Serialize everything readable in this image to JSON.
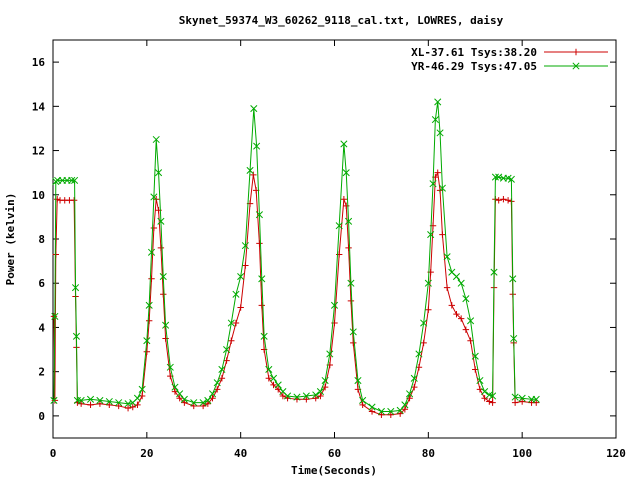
{
  "chart_data": {
    "type": "line",
    "title": "Skynet_59374_W3_60262_9118_cal.txt, LOWRES, daisy",
    "xlabel": "Time(Seconds)",
    "ylabel": "Power (kelvin)",
    "xlim": [
      0,
      120
    ],
    "ylim": [
      -1,
      17
    ],
    "xticks": [
      0,
      20,
      40,
      60,
      80,
      100,
      120
    ],
    "yticks": [
      0,
      2,
      4,
      6,
      8,
      10,
      12,
      14,
      16
    ],
    "grid": false,
    "legend_position": "top-right",
    "series": [
      {
        "name": "XL-37.61 Tsys:38.20",
        "color": "#cc0000",
        "marker": "plus",
        "points": [
          [
            0.2,
            4.5
          ],
          [
            0.4,
            0.7
          ],
          [
            0.6,
            7.3
          ],
          [
            0.9,
            9.8
          ],
          [
            1.5,
            9.75
          ],
          [
            2.5,
            9.75
          ],
          [
            3.5,
            9.75
          ],
          [
            4.5,
            9.75
          ],
          [
            4.8,
            5.4
          ],
          [
            5.0,
            3.1
          ],
          [
            5.2,
            0.6
          ],
          [
            6,
            0.55
          ],
          [
            8,
            0.5
          ],
          [
            10,
            0.55
          ],
          [
            12,
            0.5
          ],
          [
            14,
            0.45
          ],
          [
            16,
            0.35
          ],
          [
            17,
            0.4
          ],
          [
            18,
            0.5
          ],
          [
            19,
            0.9
          ],
          [
            20,
            2.9
          ],
          [
            20.5,
            4.3
          ],
          [
            21,
            6.2
          ],
          [
            21.5,
            8.5
          ],
          [
            22,
            9.8
          ],
          [
            22.5,
            9.3
          ],
          [
            23,
            7.6
          ],
          [
            23.5,
            5.5
          ],
          [
            24,
            3.5
          ],
          [
            25,
            1.8
          ],
          [
            26,
            1.1
          ],
          [
            27,
            0.8
          ],
          [
            28,
            0.6
          ],
          [
            30,
            0.45
          ],
          [
            32,
            0.45
          ],
          [
            33,
            0.55
          ],
          [
            34,
            0.8
          ],
          [
            35,
            1.2
          ],
          [
            36,
            1.7
          ],
          [
            37,
            2.5
          ],
          [
            38,
            3.4
          ],
          [
            39,
            4.2
          ],
          [
            40,
            4.9
          ],
          [
            41,
            6.8
          ],
          [
            42,
            9.6
          ],
          [
            42.7,
            10.9
          ],
          [
            43.3,
            10.2
          ],
          [
            44,
            7.8
          ],
          [
            44.5,
            5.0
          ],
          [
            45,
            3.0
          ],
          [
            46,
            1.7
          ],
          [
            47,
            1.4
          ],
          [
            48,
            1.2
          ],
          [
            49,
            0.9
          ],
          [
            50,
            0.8
          ],
          [
            52,
            0.75
          ],
          [
            54,
            0.75
          ],
          [
            56,
            0.8
          ],
          [
            57,
            0.9
          ],
          [
            58,
            1.3
          ],
          [
            59,
            2.3
          ],
          [
            60,
            4.2
          ],
          [
            61,
            7.3
          ],
          [
            62,
            9.8
          ],
          [
            62.5,
            9.5
          ],
          [
            63,
            7.6
          ],
          [
            63.5,
            5.2
          ],
          [
            64,
            3.3
          ],
          [
            65,
            1.2
          ],
          [
            66,
            0.5
          ],
          [
            68,
            0.2
          ],
          [
            70,
            0.05
          ],
          [
            72,
            0.05
          ],
          [
            74,
            0.1
          ],
          [
            75,
            0.3
          ],
          [
            76,
            0.8
          ],
          [
            77,
            1.3
          ],
          [
            78,
            2.2
          ],
          [
            79,
            3.3
          ],
          [
            80,
            4.8
          ],
          [
            80.5,
            6.5
          ],
          [
            81,
            8.6
          ],
          [
            81.5,
            10.8
          ],
          [
            82,
            11.0
          ],
          [
            82.5,
            10.2
          ],
          [
            83,
            8.2
          ],
          [
            84,
            5.8
          ],
          [
            85,
            5.0
          ],
          [
            86,
            4.6
          ],
          [
            87,
            4.4
          ],
          [
            88,
            3.9
          ],
          [
            89,
            3.4
          ],
          [
            90,
            2.1
          ],
          [
            91,
            1.2
          ],
          [
            92,
            0.8
          ],
          [
            93,
            0.65
          ],
          [
            93.7,
            0.6
          ],
          [
            94,
            5.8
          ],
          [
            94.3,
            9.8
          ],
          [
            95,
            9.75
          ],
          [
            96,
            9.8
          ],
          [
            97,
            9.75
          ],
          [
            97.7,
            9.7
          ],
          [
            98,
            5.5
          ],
          [
            98.2,
            3.3
          ],
          [
            98.5,
            0.6
          ],
          [
            100,
            0.65
          ],
          [
            102,
            0.6
          ],
          [
            103,
            0.6
          ]
        ]
      },
      {
        "name": "YR-46.29 Tsys:47.05",
        "color": "#00aa00",
        "marker": "cross",
        "points": [
          [
            0.2,
            0.7
          ],
          [
            0.4,
            4.5
          ],
          [
            0.6,
            10.6
          ],
          [
            1.0,
            10.65
          ],
          [
            2,
            10.65
          ],
          [
            3,
            10.65
          ],
          [
            4,
            10.65
          ],
          [
            4.6,
            10.65
          ],
          [
            4.8,
            5.8
          ],
          [
            5.0,
            3.6
          ],
          [
            5.2,
            0.7
          ],
          [
            6,
            0.7
          ],
          [
            8,
            0.75
          ],
          [
            10,
            0.7
          ],
          [
            12,
            0.65
          ],
          [
            14,
            0.6
          ],
          [
            16,
            0.55
          ],
          [
            17,
            0.6
          ],
          [
            18,
            0.8
          ],
          [
            19,
            1.2
          ],
          [
            20,
            3.4
          ],
          [
            20.5,
            5.0
          ],
          [
            21,
            7.4
          ],
          [
            21.5,
            9.9
          ],
          [
            22,
            12.5
          ],
          [
            22.5,
            11.0
          ],
          [
            23,
            8.8
          ],
          [
            23.5,
            6.3
          ],
          [
            24,
            4.1
          ],
          [
            25,
            2.2
          ],
          [
            26,
            1.3
          ],
          [
            27,
            1.0
          ],
          [
            28,
            0.75
          ],
          [
            30,
            0.6
          ],
          [
            32,
            0.6
          ],
          [
            33,
            0.7
          ],
          [
            34,
            1.0
          ],
          [
            35,
            1.5
          ],
          [
            36,
            2.1
          ],
          [
            37,
            3.0
          ],
          [
            38,
            4.2
          ],
          [
            39,
            5.5
          ],
          [
            40,
            6.3
          ],
          [
            41,
            7.7
          ],
          [
            42,
            11.1
          ],
          [
            42.8,
            13.9
          ],
          [
            43.4,
            12.2
          ],
          [
            44,
            9.1
          ],
          [
            44.5,
            6.2
          ],
          [
            45,
            3.6
          ],
          [
            46,
            2.1
          ],
          [
            47,
            1.7
          ],
          [
            48,
            1.4
          ],
          [
            49,
            1.1
          ],
          [
            50,
            0.9
          ],
          [
            52,
            0.85
          ],
          [
            54,
            0.9
          ],
          [
            56,
            0.95
          ],
          [
            57,
            1.1
          ],
          [
            58,
            1.6
          ],
          [
            59,
            2.8
          ],
          [
            60,
            5.0
          ],
          [
            61,
            8.6
          ],
          [
            62,
            12.3
          ],
          [
            62.5,
            11.0
          ],
          [
            63,
            8.8
          ],
          [
            63.5,
            6.0
          ],
          [
            64,
            3.8
          ],
          [
            65,
            1.6
          ],
          [
            66,
            0.7
          ],
          [
            68,
            0.4
          ],
          [
            70,
            0.2
          ],
          [
            72,
            0.2
          ],
          [
            74,
            0.25
          ],
          [
            75,
            0.5
          ],
          [
            76,
            1.0
          ],
          [
            77,
            1.7
          ],
          [
            78,
            2.8
          ],
          [
            79,
            4.2
          ],
          [
            80,
            6.0
          ],
          [
            80.5,
            8.2
          ],
          [
            81,
            10.5
          ],
          [
            81.5,
            13.4
          ],
          [
            82,
            14.2
          ],
          [
            82.5,
            12.8
          ],
          [
            83,
            10.3
          ],
          [
            84,
            7.2
          ],
          [
            85,
            6.5
          ],
          [
            86,
            6.3
          ],
          [
            87,
            6.0
          ],
          [
            88,
            5.3
          ],
          [
            89,
            4.3
          ],
          [
            90,
            2.7
          ],
          [
            91,
            1.6
          ],
          [
            92,
            1.1
          ],
          [
            93,
            0.95
          ],
          [
            93.7,
            0.9
          ],
          [
            94,
            6.5
          ],
          [
            94.3,
            10.8
          ],
          [
            95,
            10.8
          ],
          [
            96,
            10.75
          ],
          [
            97,
            10.75
          ],
          [
            97.7,
            10.7
          ],
          [
            98,
            6.2
          ],
          [
            98.2,
            3.5
          ],
          [
            98.5,
            0.85
          ],
          [
            100,
            0.8
          ],
          [
            102,
            0.75
          ],
          [
            103,
            0.75
          ]
        ]
      }
    ]
  }
}
